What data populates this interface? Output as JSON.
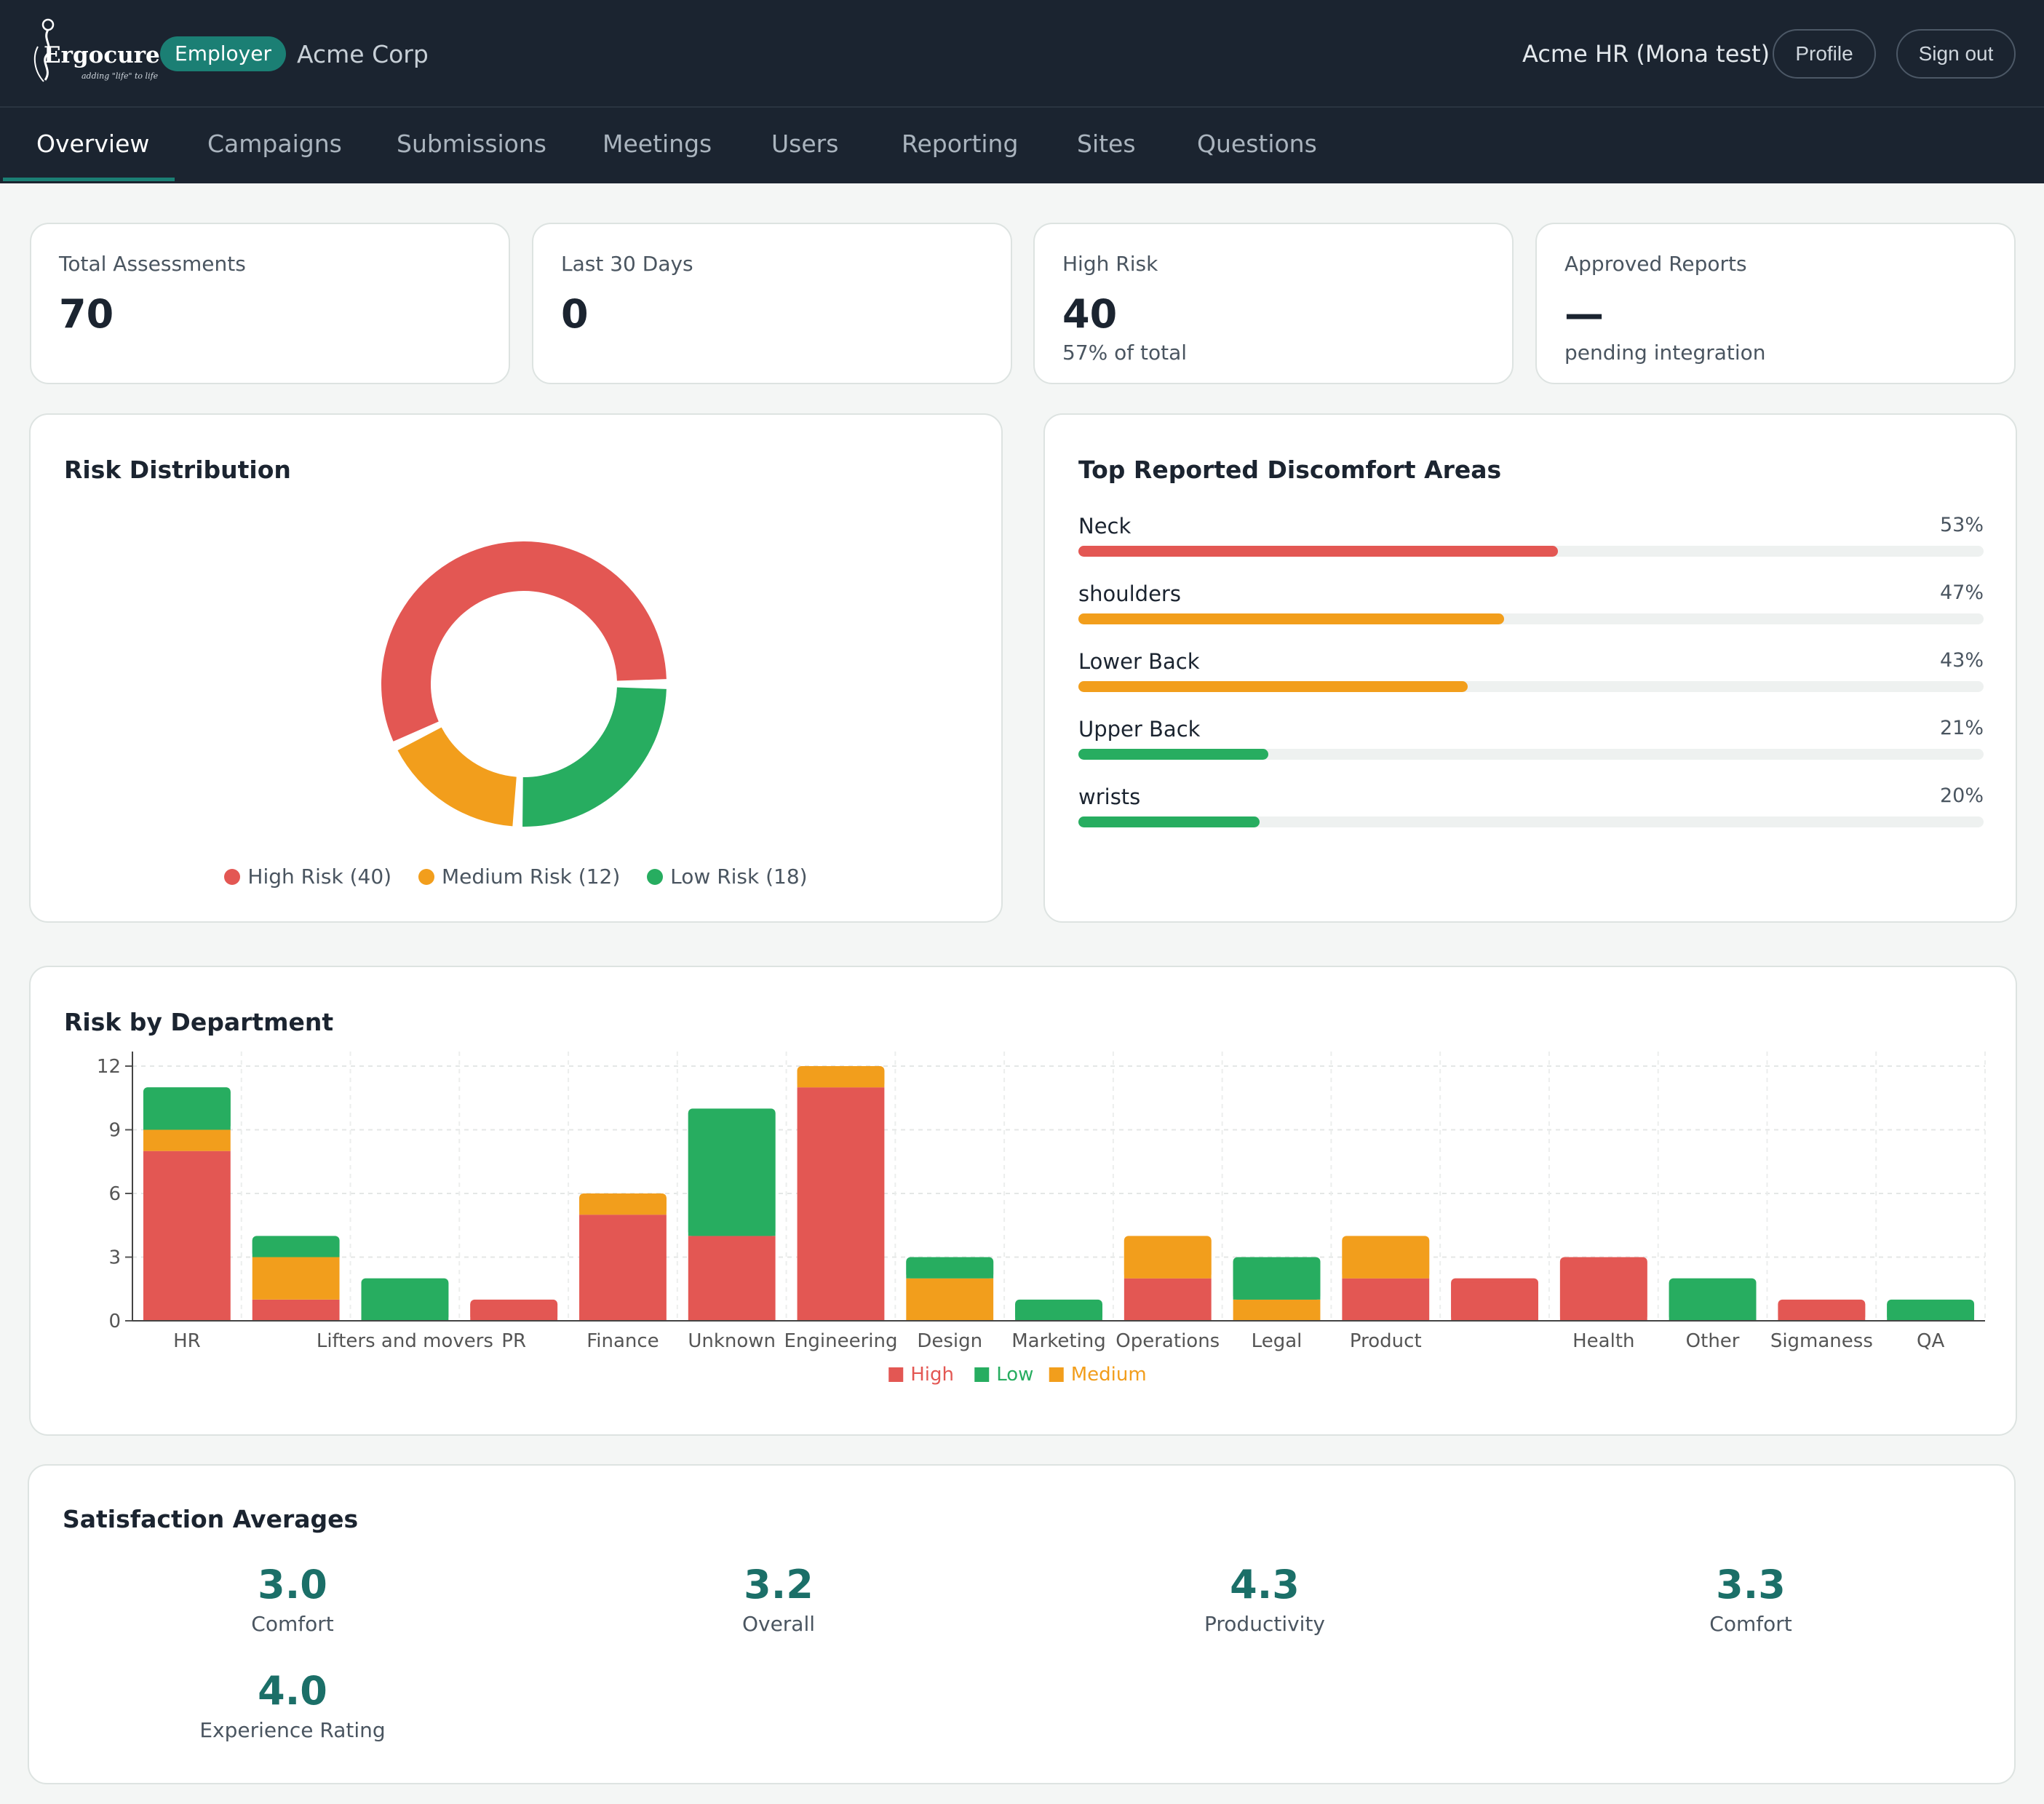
{
  "app": {
    "logo_text": "Ergocure",
    "logo_tagline": "adding \"life\" to life",
    "role": "Employer",
    "company": "Acme Corp",
    "user": "Acme HR (Mona test)",
    "profile_label": "Profile",
    "signout_label": "Sign out"
  },
  "nav": {
    "tabs": [
      {
        "label": "Overview",
        "active": true
      },
      {
        "label": "Campaigns"
      },
      {
        "label": "Submissions"
      },
      {
        "label": "Meetings"
      },
      {
        "label": "Users"
      },
      {
        "label": "Reporting"
      },
      {
        "label": "Sites"
      },
      {
        "label": "Questions"
      }
    ]
  },
  "stats": [
    {
      "label": "Total Assessments",
      "value": "70",
      "sub": ""
    },
    {
      "label": "Last 30 Days",
      "value": "0",
      "sub": ""
    },
    {
      "label": "High Risk",
      "value": "40",
      "sub": "57% of total"
    },
    {
      "label": "Approved Reports",
      "value": "—",
      "sub": "pending integration"
    }
  ],
  "risk_distribution": {
    "title": "Risk Distribution",
    "legend": [
      {
        "label": "High Risk (40)",
        "color": "#e35753"
      },
      {
        "label": "Medium Risk (12)",
        "color": "#f29e1c"
      },
      {
        "label": "Low Risk (18)",
        "color": "#27ad60"
      }
    ]
  },
  "discomfort": {
    "title": "Top Reported Discomfort Areas",
    "items": [
      {
        "label": "Neck",
        "pct": "53%",
        "value": 53,
        "color": "#e35753"
      },
      {
        "label": "shoulders",
        "pct": "47%",
        "value": 47,
        "color": "#f29e1c"
      },
      {
        "label": "Lower Back",
        "pct": "43%",
        "value": 43,
        "color": "#f29e1c"
      },
      {
        "label": "Upper Back",
        "pct": "21%",
        "value": 21,
        "color": "#27ad60"
      },
      {
        "label": "wrists",
        "pct": "20%",
        "value": 20,
        "color": "#27ad60"
      }
    ]
  },
  "risk_by_department": {
    "title": "Risk by Department"
  },
  "satisfaction": {
    "title": "Satisfaction Averages",
    "items": [
      {
        "value": "3.0",
        "label": "Comfort"
      },
      {
        "value": "3.2",
        "label": "Overall"
      },
      {
        "value": "4.3",
        "label": "Productivity"
      },
      {
        "value": "3.3",
        "label": "Comfort"
      },
      {
        "value": "4.0",
        "label": "Experience Rating"
      }
    ]
  },
  "colors": {
    "high": "#e35753",
    "medium": "#f29e1c",
    "low": "#27ad60",
    "accent": "#1b7f74",
    "header_bg": "#1b2430"
  },
  "chart_data": [
    {
      "type": "pie",
      "donut": true,
      "categories": [
        "High Risk",
        "Medium Risk",
        "Low Risk"
      ],
      "values": [
        40,
        12,
        18
      ],
      "colors": [
        "#e35753",
        "#f29e1c",
        "#27ad60"
      ]
    },
    {
      "type": "bar",
      "stacked": true,
      "categories": [
        "HR",
        "",
        "Lifters and movers",
        "PR",
        "Finance",
        "Unknown",
        "Engineering",
        "Design",
        "Marketing",
        "Operations",
        "Legal",
        "Product",
        "",
        "Health",
        "Other",
        "Sigmaness",
        "QA"
      ],
      "series": [
        {
          "name": "High",
          "color": "#e35753",
          "values": [
            8,
            1,
            0,
            1,
            5,
            4,
            11,
            0,
            0,
            2,
            0,
            2,
            2,
            3,
            0,
            1,
            0
          ]
        },
        {
          "name": "Low",
          "color": "#27ad60",
          "values": [
            2,
            1,
            2,
            0,
            0,
            6,
            0,
            1,
            1,
            0,
            2,
            0,
            0,
            0,
            2,
            0,
            1
          ]
        },
        {
          "name": "Medium",
          "color": "#f29e1c",
          "values": [
            1,
            2,
            0,
            0,
            1,
            0,
            1,
            2,
            0,
            2,
            1,
            2,
            0,
            0,
            0,
            0,
            0
          ]
        }
      ],
      "ylim": [
        0,
        12
      ],
      "yticks": [
        "0",
        "3",
        "6",
        "9",
        "12"
      ],
      "grid": true,
      "legend_position": "bottom"
    }
  ]
}
